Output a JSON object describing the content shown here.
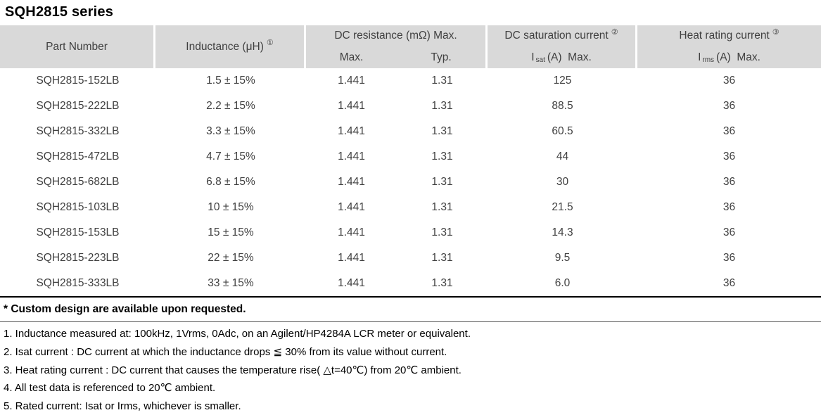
{
  "title": "SQH2815 series",
  "colors": {
    "header_bg": "#d9d9d9",
    "header_text": "#404040",
    "body_text": "#404040",
    "table_bottom_border": "#000000"
  },
  "table": {
    "headers": {
      "part_number": "Part Number",
      "inductance": {
        "label": "Inductance (μH)",
        "sup": "①"
      },
      "dc_resistance": {
        "label": "DC resistance (mΩ) Max.",
        "sub_max": "Max.",
        "sub_typ": "Typ."
      },
      "dc_saturation": {
        "label": "DC saturation current",
        "sup": "②",
        "i": "I",
        "i_sub": "sat",
        "i_rest": "(A)  Max."
      },
      "heat_rating": {
        "label": "Heat rating current",
        "sup": "③",
        "i": "I",
        "i_sub": "rms",
        "i_rest": "(A)  Max."
      }
    },
    "rows": [
      {
        "part_number": "SQH2815-152LB",
        "inductance": "1.5 ± 15%",
        "max": "1.441",
        "typ": "1.31",
        "isat": "125",
        "irms": "36"
      },
      {
        "part_number": "SQH2815-222LB",
        "inductance": "2.2 ± 15%",
        "max": "1.441",
        "typ": "1.31",
        "isat": "88.5",
        "irms": "36"
      },
      {
        "part_number": "SQH2815-332LB",
        "inductance": "3.3 ± 15%",
        "max": "1.441",
        "typ": "1.31",
        "isat": "60.5",
        "irms": "36"
      },
      {
        "part_number": "SQH2815-472LB",
        "inductance": "4.7 ± 15%",
        "max": "1.441",
        "typ": "1.31",
        "isat": "44",
        "irms": "36"
      },
      {
        "part_number": "SQH2815-682LB",
        "inductance": "6.8 ± 15%",
        "max": "1.441",
        "typ": "1.31",
        "isat": "30",
        "irms": "36"
      },
      {
        "part_number": "SQH2815-103LB",
        "inductance": "10 ± 15%",
        "max": "1.441",
        "typ": "1.31",
        "isat": "21.5",
        "irms": "36"
      },
      {
        "part_number": "SQH2815-153LB",
        "inductance": "15 ± 15%",
        "max": "1.441",
        "typ": "1.31",
        "isat": "14.3",
        "irms": "36"
      },
      {
        "part_number": "SQH2815-223LB",
        "inductance": "22 ± 15%",
        "max": "1.441",
        "typ": "1.31",
        "isat": "9.5",
        "irms": "36"
      },
      {
        "part_number": "SQH2815-333LB",
        "inductance": "33 ± 15%",
        "max": "1.441",
        "typ": "1.31",
        "isat": "6.0",
        "irms": "36"
      }
    ]
  },
  "notes": {
    "custom": "* Custom design are available upon requested.",
    "items": [
      "1. Inductance measured at: 100kHz, 1Vrms, 0Adc, on an Agilent/HP4284A LCR meter or equivalent.",
      "2. Isat current : DC current at which the inductance drops ≦ 30% from its value without current.",
      "3. Heat rating current : DC current that causes the temperature rise( △t=40℃) from 20℃ ambient.",
      "4. All test data is referenced to 20℃ ambient.",
      "5. Rated current: Isat or Irms, whichever is smaller."
    ]
  }
}
